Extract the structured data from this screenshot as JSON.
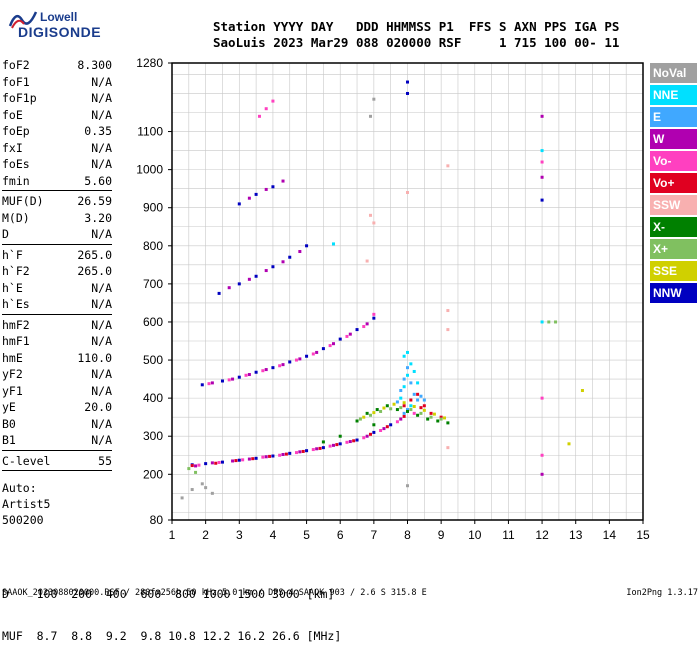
{
  "logo": {
    "top": "Lowell",
    "bottom": "DIGISONDE"
  },
  "header": {
    "line1": "Station YYYY DAY   DDD HHMMSS P1  FFS S AXN PPS IGA PS",
    "line2": "SaoLuis 2023 Mar29 088 020000 RSF     1 715 100 00- 11"
  },
  "params": [
    [
      [
        "foF2",
        "8.300"
      ],
      [
        "foF1",
        "N/A"
      ],
      [
        "foF1p",
        "N/A"
      ],
      [
        "foE",
        "N/A"
      ],
      [
        "foEp",
        "0.35"
      ],
      [
        "fxI",
        "N/A"
      ],
      [
        "foEs",
        "N/A"
      ],
      [
        "fmin",
        "5.60"
      ]
    ],
    [
      [
        "MUF(D)",
        "26.59"
      ],
      [
        "M(D)",
        "3.20"
      ],
      [
        "D",
        "N/A"
      ]
    ],
    [
      [
        "h`F",
        "265.0"
      ],
      [
        "h`F2",
        "265.0"
      ],
      [
        "h`E",
        "N/A"
      ],
      [
        "h`Es",
        "N/A"
      ]
    ],
    [
      [
        "hmF2",
        "N/A"
      ],
      [
        "hmF1",
        "N/A"
      ],
      [
        "hmE",
        "110.0"
      ],
      [
        "yF2",
        "N/A"
      ],
      [
        "yF1",
        "N/A"
      ],
      [
        "yE",
        "20.0"
      ],
      [
        "B0",
        "N/A"
      ],
      [
        "B1",
        "N/A"
      ]
    ],
    [
      [
        "C-level",
        "55"
      ]
    ]
  ],
  "auto": [
    "Auto:",
    "Artist5",
    "500200"
  ],
  "legend": [
    {
      "label": "NoVal",
      "color": "#a0a0a0"
    },
    {
      "label": "NNE",
      "color": "#00e0ff"
    },
    {
      "label": "E",
      "color": "#40a8ff"
    },
    {
      "label": "W",
      "color": "#b000b0"
    },
    {
      "label": "Vo-",
      "color": "#ff40c0"
    },
    {
      "label": "Vo+",
      "color": "#e00020"
    },
    {
      "label": "SSW",
      "color": "#f8b0b0"
    },
    {
      "label": "X-",
      "color": "#008000"
    },
    {
      "label": "X+",
      "color": "#80c060"
    },
    {
      "label": "SSE",
      "color": "#d0d000"
    },
    {
      "label": "NNW",
      "color": "#0000c0"
    }
  ],
  "dmuf": {
    "d_line": "D    100  200  400  600  800 1000 1500 3000 [km]",
    "muf_line": "MUF  8.7  8.8  9.2  9.8 10.8 12.2 16.2 26.6 [MHz]"
  },
  "footer": {
    "left": "SAAOK_2023088020000.RSF / 280fx256h 50 kHz 5.0 km / DPS-4 SAAOK 903 / 2.6 S 315.8 E",
    "right": "Ion2Png 1.3.17"
  },
  "chart_data": {
    "type": "scatter",
    "x_ticks": [
      "1",
      "2",
      "3",
      "4",
      "5",
      "6",
      "7",
      "8",
      "9",
      "10",
      "11",
      "12",
      "13",
      "14",
      "15"
    ],
    "y_ticks": [
      "80",
      "200",
      "300",
      "400",
      "500",
      "600",
      "700",
      "800",
      "900",
      "1000",
      "1100",
      "1280"
    ],
    "xlim": [
      1,
      15
    ],
    "ylim": [
      80,
      1280
    ],
    "grid": true,
    "series": [
      {
        "color": "#0000c0",
        "points": [
          [
            1.6,
            225
          ],
          [
            2.0,
            228
          ],
          [
            2.5,
            232
          ],
          [
            3.0,
            237
          ],
          [
            3.5,
            242
          ],
          [
            4.0,
            248
          ],
          [
            4.5,
            255
          ],
          [
            5.0,
            262
          ],
          [
            5.5,
            270
          ],
          [
            6.0,
            280
          ],
          [
            6.5,
            290
          ],
          [
            7.0,
            310
          ],
          [
            7.5,
            330
          ],
          [
            1.9,
            435
          ],
          [
            2.5,
            445
          ],
          [
            3.0,
            455
          ],
          [
            3.5,
            468
          ],
          [
            4.0,
            480
          ],
          [
            4.5,
            495
          ],
          [
            5.0,
            510
          ],
          [
            5.5,
            530
          ],
          [
            6.0,
            555
          ],
          [
            6.5,
            580
          ],
          [
            7.0,
            610
          ],
          [
            2.4,
            675
          ],
          [
            3.0,
            700
          ],
          [
            3.5,
            720
          ],
          [
            4.0,
            745
          ],
          [
            4.5,
            770
          ],
          [
            5.0,
            800
          ],
          [
            3.0,
            910
          ],
          [
            3.5,
            935
          ],
          [
            4.0,
            955
          ],
          [
            8.0,
            1200
          ],
          [
            8.0,
            1230
          ],
          [
            12.0,
            920
          ]
        ]
      },
      {
        "color": "#b000b0",
        "points": [
          [
            1.7,
            222
          ],
          [
            2.2,
            230
          ],
          [
            2.8,
            235
          ],
          [
            3.3,
            240
          ],
          [
            3.8,
            246
          ],
          [
            4.3,
            252
          ],
          [
            4.8,
            259
          ],
          [
            5.3,
            267
          ],
          [
            5.8,
            276
          ],
          [
            6.3,
            286
          ],
          [
            6.8,
            300
          ],
          [
            7.3,
            320
          ],
          [
            7.8,
            345
          ],
          [
            2.2,
            440
          ],
          [
            2.8,
            450
          ],
          [
            3.3,
            462
          ],
          [
            3.8,
            475
          ],
          [
            4.3,
            488
          ],
          [
            4.8,
            503
          ],
          [
            5.3,
            520
          ],
          [
            5.8,
            543
          ],
          [
            6.3,
            568
          ],
          [
            6.8,
            595
          ],
          [
            2.7,
            690
          ],
          [
            3.3,
            712
          ],
          [
            3.8,
            735
          ],
          [
            4.3,
            758
          ],
          [
            4.8,
            785
          ],
          [
            3.3,
            925
          ],
          [
            3.8,
            948
          ],
          [
            4.3,
            970
          ],
          [
            12.0,
            1140
          ],
          [
            12.0,
            980
          ],
          [
            12.0,
            200
          ]
        ]
      },
      {
        "color": "#ff40c0",
        "points": [
          [
            1.8,
            224
          ],
          [
            2.4,
            231
          ],
          [
            3.1,
            238
          ],
          [
            3.7,
            245
          ],
          [
            4.2,
            250
          ],
          [
            4.7,
            257
          ],
          [
            5.2,
            265
          ],
          [
            5.7,
            274
          ],
          [
            6.2,
            284
          ],
          [
            6.7,
            296
          ],
          [
            7.2,
            315
          ],
          [
            7.7,
            338
          ],
          [
            8.2,
            360
          ],
          [
            2.1,
            438
          ],
          [
            2.7,
            448
          ],
          [
            3.2,
            460
          ],
          [
            3.7,
            472
          ],
          [
            4.2,
            485
          ],
          [
            4.7,
            500
          ],
          [
            5.2,
            516
          ],
          [
            5.7,
            538
          ],
          [
            6.2,
            562
          ],
          [
            6.7,
            588
          ],
          [
            7.0,
            620
          ],
          [
            3.6,
            1140
          ],
          [
            3.8,
            1160
          ],
          [
            4.0,
            1180
          ],
          [
            12.0,
            1020
          ],
          [
            12.0,
            400
          ],
          [
            12.0,
            250
          ]
        ]
      },
      {
        "color": "#e00020",
        "points": [
          [
            1.6,
            223
          ],
          [
            2.3,
            229
          ],
          [
            2.9,
            236
          ],
          [
            3.4,
            241
          ],
          [
            3.9,
            247
          ],
          [
            4.4,
            253
          ],
          [
            4.9,
            260
          ],
          [
            5.4,
            268
          ],
          [
            5.9,
            278
          ],
          [
            6.4,
            288
          ],
          [
            6.9,
            305
          ],
          [
            7.4,
            325
          ],
          [
            7.9,
            352
          ],
          [
            8.4,
            375
          ],
          [
            7.9,
            380
          ],
          [
            8.1,
            395
          ],
          [
            8.3,
            410
          ],
          [
            8.5,
            380
          ],
          [
            8.7,
            360
          ],
          [
            9.0,
            350
          ]
        ]
      },
      {
        "color": "#00e0ff",
        "points": [
          [
            7.8,
            400
          ],
          [
            7.9,
            430
          ],
          [
            8.0,
            460
          ],
          [
            8.1,
            490
          ],
          [
            8.2,
            470
          ],
          [
            8.0,
            520
          ],
          [
            7.9,
            510
          ],
          [
            8.3,
            440
          ],
          [
            8.1,
            380
          ],
          [
            12.0,
            1050
          ],
          [
            12.0,
            600
          ],
          [
            5.8,
            805
          ]
        ]
      },
      {
        "color": "#40a8ff",
        "points": [
          [
            7.7,
            390
          ],
          [
            7.8,
            420
          ],
          [
            7.9,
            450
          ],
          [
            8.0,
            480
          ],
          [
            8.1,
            440
          ],
          [
            8.2,
            410
          ],
          [
            8.3,
            395
          ],
          [
            8.4,
            405
          ],
          [
            8.5,
            395
          ],
          [
            8.0,
            370
          ],
          [
            7.9,
            360
          ]
        ]
      },
      {
        "color": "#008000",
        "points": [
          [
            6.5,
            340
          ],
          [
            6.8,
            360
          ],
          [
            7.1,
            370
          ],
          [
            7.4,
            380
          ],
          [
            7.7,
            370
          ],
          [
            8.0,
            365
          ],
          [
            8.3,
            355
          ],
          [
            8.6,
            345
          ],
          [
            8.9,
            340
          ],
          [
            9.2,
            335
          ],
          [
            7.0,
            330
          ],
          [
            6.0,
            300
          ],
          [
            5.5,
            285
          ]
        ]
      },
      {
        "color": "#80c060",
        "points": [
          [
            6.6,
            345
          ],
          [
            6.9,
            355
          ],
          [
            7.2,
            365
          ],
          [
            7.5,
            372
          ],
          [
            7.8,
            375
          ],
          [
            8.1,
            370
          ],
          [
            8.4,
            360
          ],
          [
            8.7,
            350
          ],
          [
            9.0,
            345
          ],
          [
            1.5,
            215
          ],
          [
            1.7,
            205
          ],
          [
            12.2,
            600
          ],
          [
            12.4,
            600
          ]
        ]
      },
      {
        "color": "#d0d000",
        "points": [
          [
            6.7,
            350
          ],
          [
            7.0,
            362
          ],
          [
            7.3,
            374
          ],
          [
            7.6,
            384
          ],
          [
            7.9,
            388
          ],
          [
            8.2,
            378
          ],
          [
            8.5,
            368
          ],
          [
            8.8,
            358
          ],
          [
            9.1,
            348
          ],
          [
            13.2,
            420
          ],
          [
            12.8,
            280
          ]
        ]
      },
      {
        "color": "#f8b0b0",
        "points": [
          [
            9.2,
            1010
          ],
          [
            9.2,
            630
          ],
          [
            9.2,
            580
          ],
          [
            9.2,
            270
          ],
          [
            8.0,
            940
          ],
          [
            7.0,
            860
          ],
          [
            6.9,
            880
          ],
          [
            6.8,
            760
          ]
        ]
      },
      {
        "color": "#a0a0a0",
        "points": [
          [
            1.9,
            175
          ],
          [
            2.0,
            165
          ],
          [
            1.6,
            160
          ],
          [
            2.2,
            150
          ],
          [
            1.3,
            138
          ],
          [
            8.0,
            170
          ],
          [
            7.0,
            1185
          ],
          [
            6.9,
            1140
          ]
        ]
      }
    ]
  }
}
